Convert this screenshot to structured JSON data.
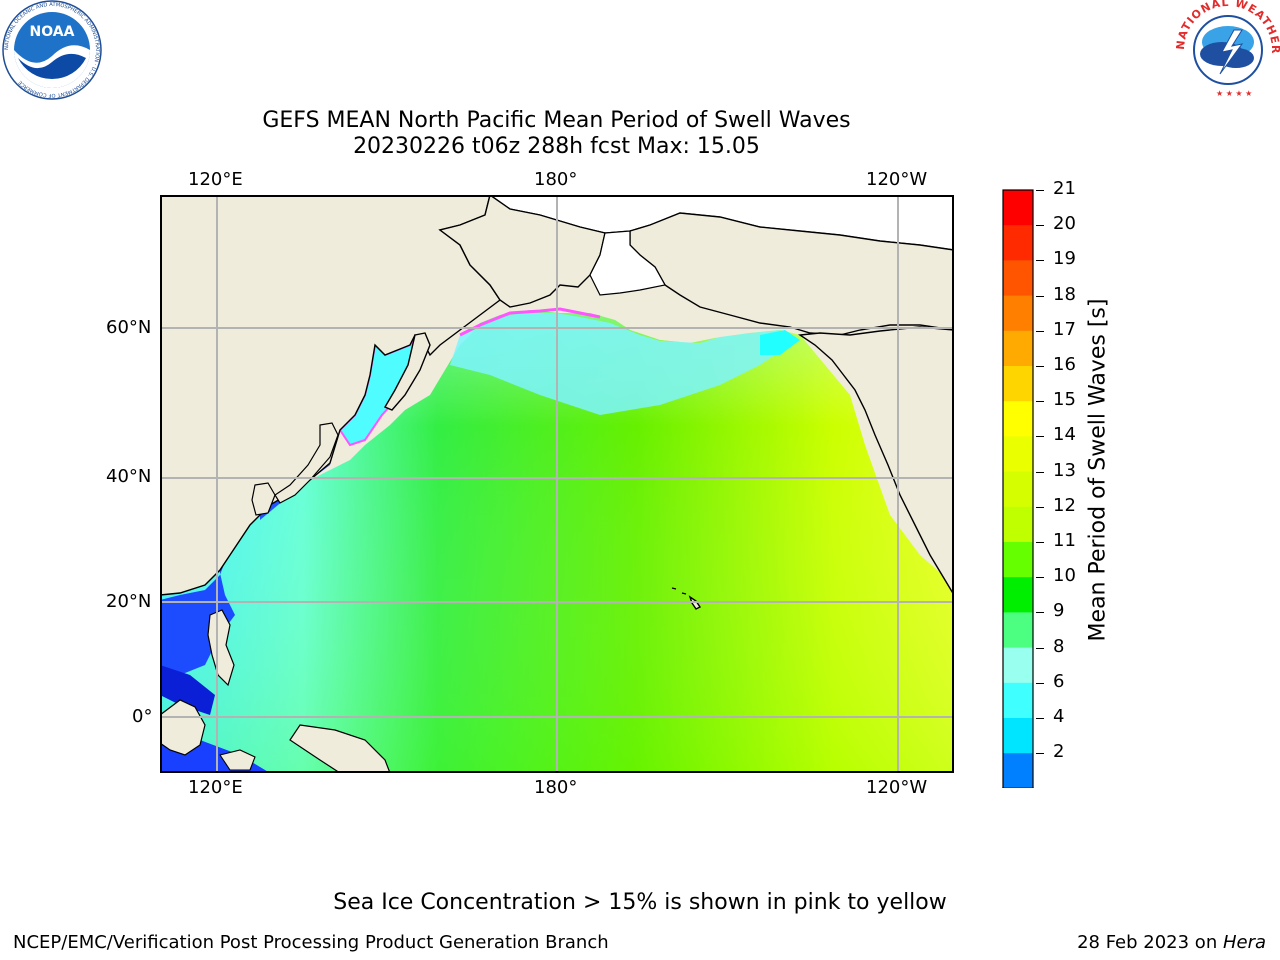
{
  "title": {
    "line1": "GEFS MEAN North Pacific Mean Period of Swell Waves",
    "line2": "20230226 t06z 288h fcst   Max: 15.05"
  },
  "map": {
    "top_lon_labels": [
      "120°E",
      "180°",
      "120°W"
    ],
    "bottom_lon_labels": [
      "120°E",
      "180°",
      "120°W"
    ],
    "lat_labels": [
      "60°N",
      "40°N",
      "20°N",
      "0°"
    ],
    "land_color": "#efecdc",
    "ice_edge_colors": [
      "#ff66ff",
      "#ff9933",
      "#ffff00"
    ]
  },
  "colorbar": {
    "label": "Mean Period of Swell Waves [s]",
    "ticks": [
      "21",
      "20",
      "19",
      "18",
      "17",
      "16",
      "15",
      "14",
      "13",
      "12",
      "11",
      "10",
      "9",
      "8",
      "6",
      "4",
      "2"
    ],
    "colors": [
      "#ff0000",
      "#ff2a00",
      "#ff5500",
      "#ff8000",
      "#ffaa00",
      "#ffd500",
      "#ffff00",
      "#eaff00",
      "#d5ff00",
      "#bfff00",
      "#66ff00",
      "#00ee00",
      "#4dff80",
      "#99ffee",
      "#40ffff",
      "#00e5ff",
      "#0080ff",
      "#0000ff"
    ]
  },
  "note": "Sea Ice Concentration > 15% is shown in pink to yellow",
  "footer": {
    "left": "NCEP/EMC/Verification Post Processing Product Generation Branch",
    "right_date": "28 Feb 2023 on ",
    "right_host": "Hera"
  },
  "logos": {
    "noaa": "NOAA",
    "noaa_ring": "NATIONAL OCEANIC AND ATMOSPHERIC ADMINISTRATION · U.S. DEPARTMENT OF COMMERCE",
    "nws_ring": "NATIONAL WEATHER SERVICE"
  }
}
